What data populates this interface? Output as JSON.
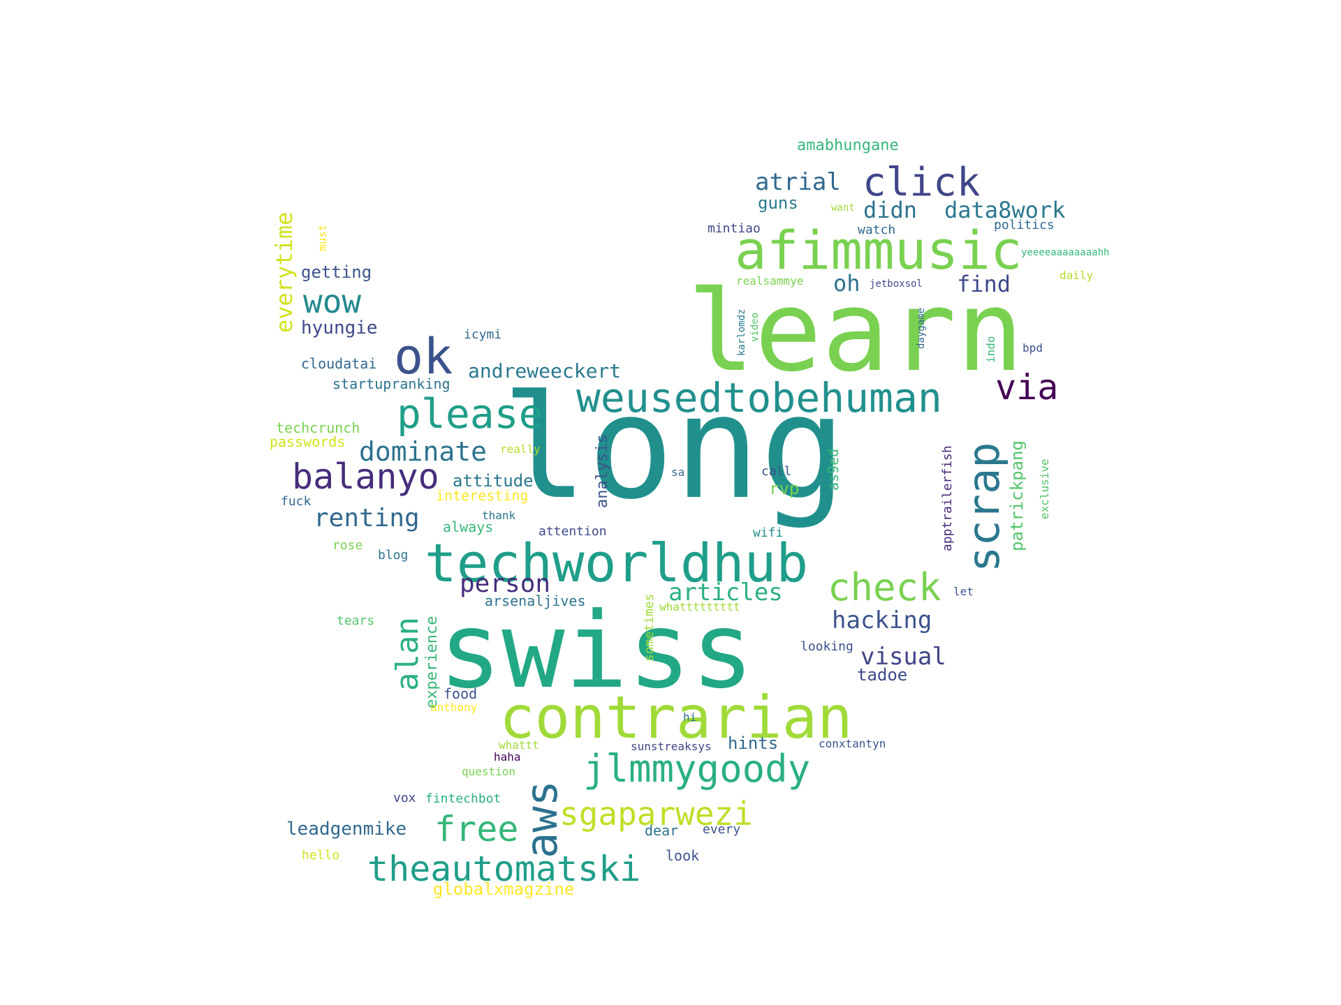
{
  "words": [
    {
      "text": "long",
      "color": "#21908d"
    },
    {
      "text": "swiss",
      "color": "#22a884"
    },
    {
      "text": "learn",
      "color": "#7ad151"
    },
    {
      "text": "contrarian",
      "color": "#a0da39"
    },
    {
      "text": "techworldhub",
      "color": "#1f9e89"
    },
    {
      "text": "afimmusic",
      "color": "#7ad151"
    },
    {
      "text": "scrap",
      "color": "#2a788e"
    },
    {
      "text": "weusedtobehuman",
      "color": "#21908d"
    },
    {
      "text": "please",
      "color": "#1f9e89"
    },
    {
      "text": "ok",
      "color": "#3b528b"
    },
    {
      "text": "click",
      "color": "#404688"
    },
    {
      "text": "aws",
      "color": "#2c728e"
    },
    {
      "text": "jlmmygoody",
      "color": "#2ab07f"
    },
    {
      "text": "check",
      "color": "#7ad151"
    },
    {
      "text": "balanyo",
      "color": "#472d7b"
    },
    {
      "text": "via",
      "color": "#440154"
    },
    {
      "text": "sgaparwezi",
      "color": "#bddf26"
    },
    {
      "text": "free",
      "color": "#35b779"
    },
    {
      "text": "theautomatski",
      "color": "#1f9e89"
    },
    {
      "text": "alan",
      "color": "#2ab07f"
    },
    {
      "text": "wow",
      "color": "#23898e"
    },
    {
      "text": "dominate",
      "color": "#2c728e"
    },
    {
      "text": "everytime",
      "color": "#d2e21b"
    },
    {
      "text": "renting",
      "color": "#31688e"
    },
    {
      "text": "person",
      "color": "#472d7b"
    },
    {
      "text": "articles",
      "color": "#2ab07f"
    },
    {
      "text": "hacking",
      "color": "#3b528b"
    },
    {
      "text": "atrial",
      "color": "#31688e"
    },
    {
      "text": "didn",
      "color": "#2c728e"
    },
    {
      "text": "data8work",
      "color": "#2a788e"
    },
    {
      "text": "andreweeckert",
      "color": "#2a788e"
    },
    {
      "text": "visual",
      "color": "#414487"
    },
    {
      "text": "find",
      "color": "#3e4989"
    },
    {
      "text": "oh",
      "color": "#2c728e"
    },
    {
      "text": "patrickpang",
      "color": "#52c569"
    },
    {
      "text": "hyungie",
      "color": "#3e4989"
    },
    {
      "text": "getting",
      "color": "#3b528b"
    },
    {
      "text": "leadgenmike",
      "color": "#31688e"
    },
    {
      "text": "attitude",
      "color": "#2a788e"
    },
    {
      "text": "guns",
      "color": "#2a788e"
    },
    {
      "text": "experience",
      "color": "#35b779"
    },
    {
      "text": "analysis",
      "color": "#3b528b"
    },
    {
      "text": "tadoe",
      "color": "#3e4989"
    },
    {
      "text": "globalxmagzine",
      "color": "#fde725"
    },
    {
      "text": "hints",
      "color": "#31688e"
    },
    {
      "text": "rvp",
      "color": "#7ad151"
    },
    {
      "text": "amabhungane",
      "color": "#35b779"
    },
    {
      "text": "apptrailerfish",
      "color": "#482878"
    },
    {
      "text": "as9ed",
      "color": "#35b779"
    },
    {
      "text": "arsenaljives",
      "color": "#2c728e"
    },
    {
      "text": "interesting",
      "color": "#fde725"
    },
    {
      "text": "always",
      "color": "#35b779"
    },
    {
      "text": "cloudatai",
      "color": "#31688e"
    },
    {
      "text": "food",
      "color": "#3b528b"
    },
    {
      "text": "startupranking",
      "color": "#2c728e"
    },
    {
      "text": "techcrunch",
      "color": "#7ad151"
    },
    {
      "text": "passwords",
      "color": "#d2e21b"
    },
    {
      "text": "dear",
      "color": "#2c728e"
    },
    {
      "text": "look",
      "color": "#3b528b"
    },
    {
      "text": "sometimes",
      "color": "#a0da39"
    },
    {
      "text": "mintiao",
      "color": "#3e4989"
    },
    {
      "text": "watch",
      "color": "#31688e"
    },
    {
      "text": "politics",
      "color": "#31688e"
    },
    {
      "text": "exclusive",
      "color": "#52c569"
    },
    {
      "text": "realsammye",
      "color": "#7ad151"
    },
    {
      "text": "daily",
      "color": "#b5de2b"
    },
    {
      "text": "call",
      "color": "#3b528b"
    },
    {
      "text": "attention",
      "color": "#3e4989"
    },
    {
      "text": "icymi",
      "color": "#31688e"
    },
    {
      "text": "fuck",
      "color": "#31688e"
    },
    {
      "text": "looking",
      "color": "#3b528b"
    },
    {
      "text": "wifi",
      "color": "#21908d"
    },
    {
      "text": "blog",
      "color": "#2c728e"
    },
    {
      "text": "every",
      "color": "#3b528b"
    },
    {
      "text": "vox",
      "color": "#3e4989"
    },
    {
      "text": "fintechbot",
      "color": "#2ab07f"
    },
    {
      "text": "hello",
      "color": "#d2e21b"
    },
    {
      "text": "conxtantyn",
      "color": "#3b528b"
    },
    {
      "text": "tears",
      "color": "#52c569"
    },
    {
      "text": "rose",
      "color": "#7ad151"
    },
    {
      "text": "must",
      "color": "#fde725"
    },
    {
      "text": "whattt",
      "color": "#a0da39"
    },
    {
      "text": "question",
      "color": "#7ad151"
    },
    {
      "text": "anthony",
      "color": "#fde725"
    },
    {
      "text": "sunstreaksys",
      "color": "#414487"
    },
    {
      "text": "haha",
      "color": "#440154"
    },
    {
      "text": "really",
      "color": "#b5de2b"
    },
    {
      "text": "thank",
      "color": "#2a788e"
    },
    {
      "text": "sa",
      "color": "#31688e"
    },
    {
      "text": "let",
      "color": "#3b528b"
    },
    {
      "text": "whattttttttt",
      "color": "#a0da39"
    },
    {
      "text": "hi",
      "color": "#2c728e"
    },
    {
      "text": "want",
      "color": "#a0da39"
    },
    {
      "text": "jetboxsol",
      "color": "#3e4989"
    },
    {
      "text": "yeeeeaaaaaaaahh",
      "color": "#35b779"
    },
    {
      "text": "karlomdz",
      "color": "#2a788e"
    },
    {
      "text": "video",
      "color": "#52c569"
    },
    {
      "text": "daygame",
      "color": "#31688e"
    },
    {
      "text": "indo",
      "color": "#35b779"
    },
    {
      "text": "bpd",
      "color": "#3b528b"
    }
  ]
}
